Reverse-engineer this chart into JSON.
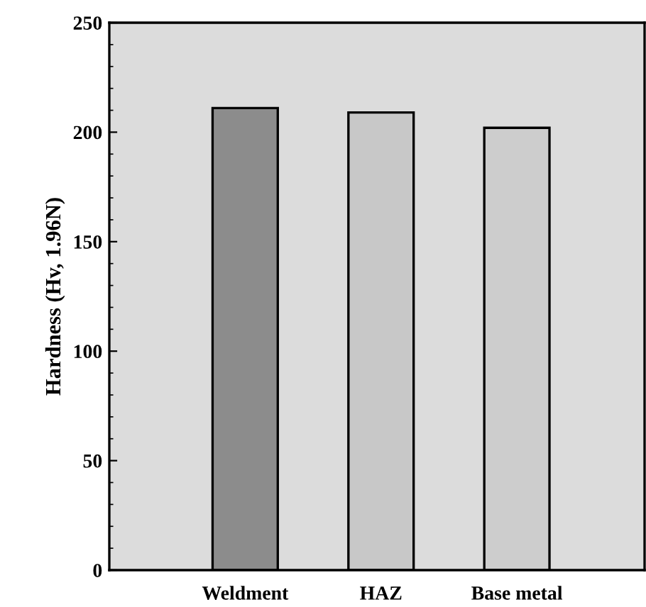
{
  "chart_data": {
    "type": "bar",
    "ylabel": "Hardness (Hv, 1.96N)",
    "categories": [
      "Weldment",
      "HAZ",
      "Base metal"
    ],
    "values": [
      211,
      209,
      202
    ],
    "colors": [
      "#8c8c8c",
      "#c8c8c8",
      "#cdcdcd"
    ],
    "ylim": [
      0,
      250
    ],
    "yticks": [
      0,
      50,
      100,
      150,
      200,
      250
    ],
    "grid": false
  }
}
